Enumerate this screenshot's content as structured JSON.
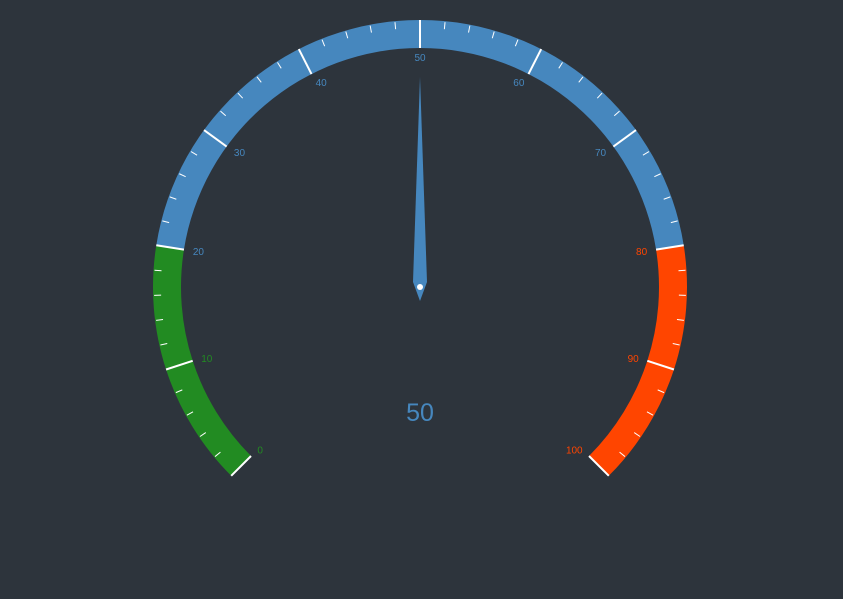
{
  "chart_data": {
    "type": "gauge",
    "min": 0,
    "max": 100,
    "value": 50,
    "value_label": "50",
    "major_ticks": [
      0,
      10,
      20,
      30,
      40,
      50,
      60,
      70,
      80,
      90,
      100
    ],
    "major_tick_labels": [
      "0",
      "10",
      "20",
      "30",
      "40",
      "50",
      "60",
      "70",
      "80",
      "90",
      "100"
    ],
    "minor_ticks_per_major": 5,
    "bands": [
      {
        "from": 0,
        "to": 20,
        "color": "#228b22"
      },
      {
        "from": 20,
        "to": 80,
        "color": "#4687be"
      },
      {
        "from": 80,
        "to": 100,
        "color": "#ff4500"
      }
    ],
    "needle_color": "#4687be",
    "value_color": "#4687be",
    "tick_color": "#ffffff"
  }
}
